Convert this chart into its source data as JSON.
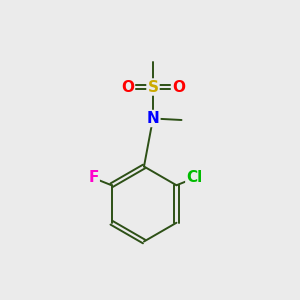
{
  "background_color": "#ebebeb",
  "atom_colors": {
    "C": "#2d5016",
    "N": "#0000ff",
    "S": "#ccaa00",
    "O": "#ff0000",
    "F": "#ff00cc",
    "Cl": "#00bb00"
  },
  "bond_color": "#2d5016",
  "font_size_atoms": 11,
  "lw": 1.4
}
